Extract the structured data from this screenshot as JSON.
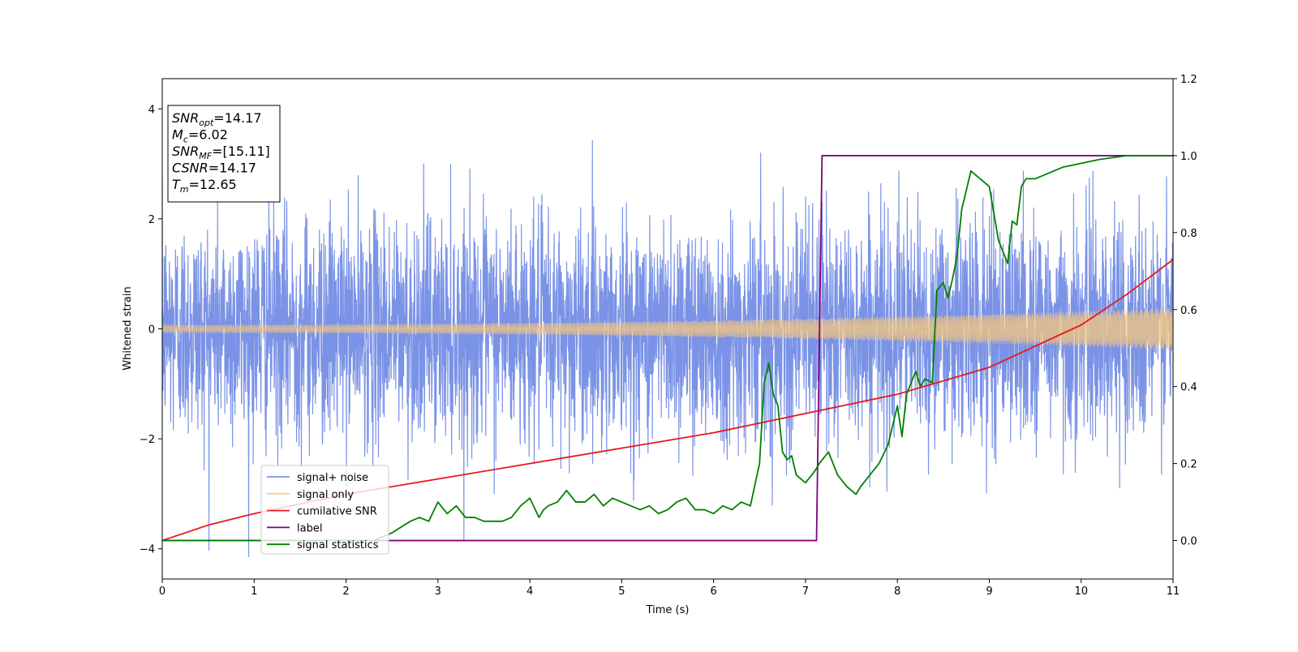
{
  "chart_data": {
    "type": "line",
    "xlabel": "Time (s)",
    "ylabel": "Whitened strain",
    "xlim": [
      0,
      11
    ],
    "ylim": [
      -4.55,
      4.55
    ],
    "y2lim": [
      -0.1,
      1.2
    ],
    "xticks": [
      "0",
      "1",
      "2",
      "3",
      "4",
      "5",
      "6",
      "7",
      "8",
      "9",
      "10",
      "11"
    ],
    "yticks": [
      "−4",
      "−2",
      "0",
      "2",
      "4"
    ],
    "y2ticks": [
      "0.0",
      "0.2",
      "0.4",
      "0.6",
      "0.8",
      "1.0",
      "1.2"
    ],
    "grid": false,
    "legend_position": "lower-left",
    "annotation": {
      "lines": [
        {
          "sym": "SNR",
          "sub": "opt",
          "value": "=14.17"
        },
        {
          "sym": "M",
          "sub": "c",
          "value": "=6.02"
        },
        {
          "sym": "SNR",
          "sub": "MF",
          "value": "=[15.11]"
        },
        {
          "sym": "CSNR",
          "sub": "",
          "value": "=14.17"
        },
        {
          "sym": "T",
          "sub": "m",
          "value": "=12.65"
        }
      ]
    },
    "series": [
      {
        "name": "signal+ noise",
        "color": "#7b93e6",
        "axis": "left",
        "description_kind": "noise",
        "noise_std": 1.0,
        "envelope_peak": 4.15
      },
      {
        "name": "signal only",
        "color": "#f5c77e",
        "axis": "left",
        "kind": "chirp",
        "amplitude_start": 0.07,
        "amplitude_end": 0.38
      },
      {
        "name": "cumilative SNR",
        "color": "#e41a1c",
        "axis": "right",
        "x": [
          0,
          0.5,
          1,
          2,
          3,
          4,
          5,
          6,
          7,
          8,
          9,
          10,
          10.5,
          11
        ],
        "y": [
          0.0,
          0.04,
          0.07,
          0.12,
          0.16,
          0.2,
          0.24,
          0.28,
          0.33,
          0.38,
          0.45,
          0.56,
          0.64,
          0.73
        ]
      },
      {
        "name": "label",
        "color": "#800080",
        "axis": "right",
        "x": [
          0,
          7.12,
          7.18,
          11
        ],
        "y": [
          0,
          0,
          1,
          1
        ]
      },
      {
        "name": "signal statistics",
        "color": "#008000",
        "axis": "right",
        "x": [
          0,
          0.5,
          1,
          1.5,
          2,
          2.3,
          2.5,
          2.7,
          2.8,
          2.9,
          3.0,
          3.1,
          3.2,
          3.3,
          3.4,
          3.5,
          3.6,
          3.7,
          3.8,
          3.9,
          4.0,
          4.1,
          4.15,
          4.2,
          4.3,
          4.4,
          4.5,
          4.6,
          4.7,
          4.8,
          4.9,
          5.0,
          5.1,
          5.2,
          5.3,
          5.4,
          5.5,
          5.6,
          5.7,
          5.8,
          5.9,
          6.0,
          6.1,
          6.2,
          6.3,
          6.4,
          6.5,
          6.55,
          6.6,
          6.65,
          6.7,
          6.75,
          6.8,
          6.85,
          6.9,
          7.0,
          7.1,
          7.15,
          7.25,
          7.35,
          7.45,
          7.55,
          7.6,
          7.7,
          7.8,
          7.9,
          8.0,
          8.05,
          8.1,
          8.2,
          8.25,
          8.3,
          8.38,
          8.43,
          8.5,
          8.55,
          8.6,
          8.65,
          8.7,
          8.8,
          8.9,
          9.0,
          9.1,
          9.2,
          9.25,
          9.3,
          9.35,
          9.4,
          9.5,
          9.6,
          9.7,
          9.8,
          10.0,
          10.2,
          10.5,
          10.8,
          11.0
        ],
        "y": [
          0.0,
          0.0,
          0.0,
          0.0,
          0.0,
          0.0,
          0.02,
          0.05,
          0.06,
          0.05,
          0.1,
          0.07,
          0.09,
          0.06,
          0.06,
          0.05,
          0.05,
          0.05,
          0.06,
          0.09,
          0.11,
          0.06,
          0.08,
          0.09,
          0.1,
          0.13,
          0.1,
          0.1,
          0.12,
          0.09,
          0.11,
          0.1,
          0.09,
          0.08,
          0.09,
          0.07,
          0.08,
          0.1,
          0.11,
          0.08,
          0.08,
          0.07,
          0.09,
          0.08,
          0.1,
          0.09,
          0.2,
          0.41,
          0.46,
          0.38,
          0.35,
          0.23,
          0.21,
          0.22,
          0.17,
          0.15,
          0.18,
          0.2,
          0.23,
          0.17,
          0.14,
          0.12,
          0.14,
          0.17,
          0.2,
          0.25,
          0.35,
          0.27,
          0.38,
          0.44,
          0.4,
          0.42,
          0.41,
          0.65,
          0.67,
          0.63,
          0.68,
          0.74,
          0.86,
          0.96,
          0.94,
          0.92,
          0.78,
          0.72,
          0.83,
          0.82,
          0.92,
          0.94,
          0.94,
          0.95,
          0.96,
          0.97,
          0.98,
          0.99,
          1.0,
          1.0,
          1.0
        ]
      }
    ]
  }
}
